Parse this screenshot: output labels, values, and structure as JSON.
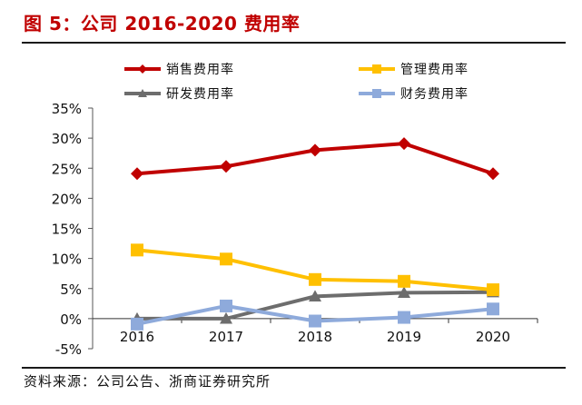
{
  "header": {
    "title": "图 5：公司 2016-2020 费用率"
  },
  "footer": {
    "source": "资料来源：公司公告、浙商证券研究所"
  },
  "chart_data": {
    "type": "line",
    "title": "图 5：公司 2016-2020 费用率",
    "xlabel": "",
    "ylabel": "",
    "categories": [
      "2016",
      "2017",
      "2018",
      "2019",
      "2020"
    ],
    "ylim": [
      -0.05,
      0.35
    ],
    "yticks": [
      -0.05,
      0,
      0.05,
      0.1,
      0.15,
      0.2,
      0.25,
      0.3,
      0.35
    ],
    "ytick_labels": [
      "-5%",
      "0%",
      "5%",
      "10%",
      "15%",
      "20%",
      "25%",
      "30%",
      "35%"
    ],
    "grid": false,
    "legend_position": "top",
    "series": [
      {
        "name": "销售费用率",
        "color": "#c00000",
        "marker": "diamond",
        "values": [
          0.241,
          0.253,
          0.28,
          0.291,
          0.241
        ]
      },
      {
        "name": "管理费用率",
        "color": "#ffc000",
        "marker": "square",
        "values": [
          0.114,
          0.099,
          0.065,
          0.062,
          0.048
        ]
      },
      {
        "name": "研发费用率",
        "color": "#6d6d6d",
        "marker": "triangle",
        "values": [
          0.0,
          0.0,
          0.037,
          0.043,
          0.044
        ]
      },
      {
        "name": "财务费用率",
        "color": "#8eaadb",
        "marker": "square",
        "values": [
          -0.009,
          0.021,
          -0.004,
          0.002,
          0.016
        ]
      }
    ]
  }
}
